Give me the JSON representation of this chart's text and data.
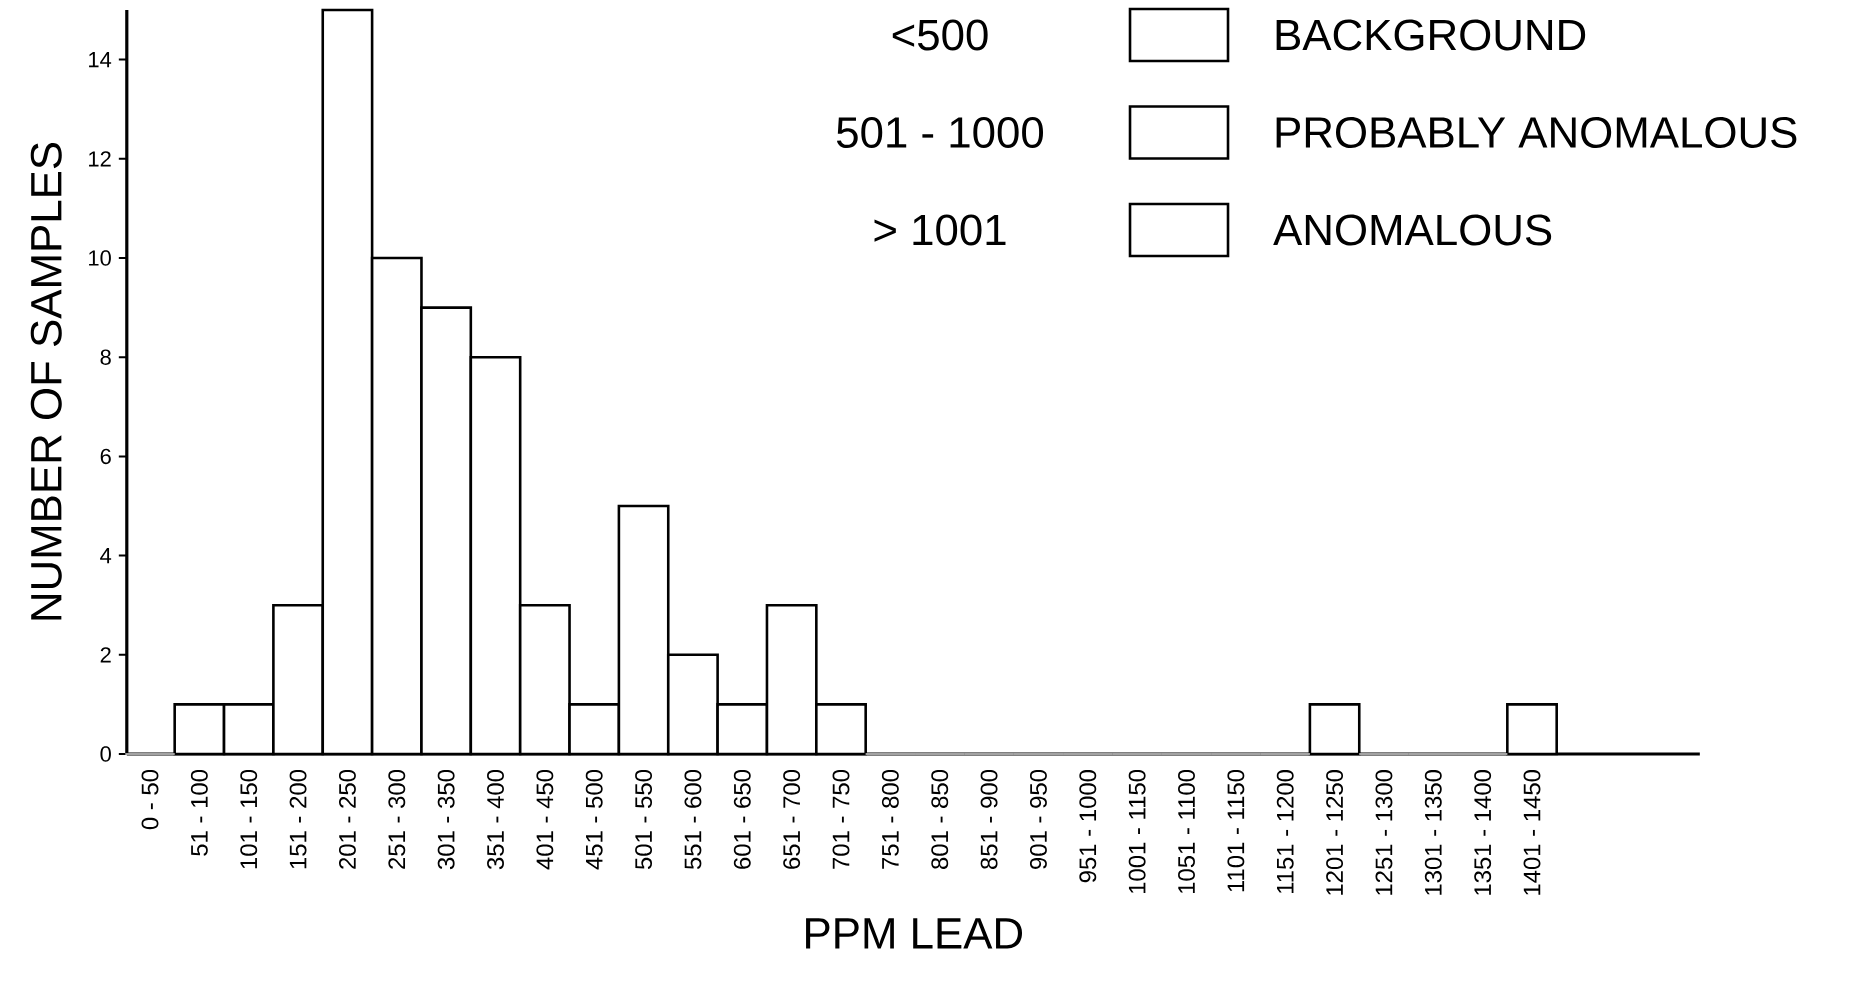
{
  "chart_data": {
    "type": "bar",
    "xlabel": "PPM    LEAD",
    "ylabel": "NUMBER OF SAMPLES",
    "categories": [
      "0 - 50",
      "51 - 100",
      "101 - 150",
      "151 - 200",
      "201 - 250",
      "251 - 300",
      "301 - 350",
      "351 - 400",
      "401 - 450",
      "451 - 500",
      "501 - 550",
      "551 - 600",
      "601 - 650",
      "651 - 700",
      "701 - 750",
      "751 - 800",
      "801 - 850",
      "851 - 900",
      "901 - 950",
      "951 - 1000",
      "1001 - 1150",
      "1051 - 1100",
      "1101 - 1150",
      "1151 - 1200",
      "1201 - 1250",
      "1251 - 1300",
      "1301 - 1350",
      "1351 - 1400",
      "1401 - 1450"
    ],
    "series": [
      {
        "name": "BACKGROUND",
        "color": "#ffffff",
        "values": [
          0,
          1,
          1,
          3,
          15,
          10,
          9,
          8,
          3,
          1,
          null,
          null,
          null,
          null,
          null,
          null,
          null,
          null,
          null,
          null,
          null,
          null,
          null,
          null,
          null,
          null,
          null,
          null,
          null
        ]
      },
      {
        "name": "PROBABLY ANOMALOUS",
        "color": "#ffffff",
        "values": [
          null,
          null,
          null,
          null,
          null,
          null,
          null,
          null,
          null,
          null,
          5,
          2,
          1,
          3,
          1,
          0,
          0,
          0,
          0,
          0,
          null,
          null,
          null,
          null,
          null,
          null,
          null,
          null,
          null
        ]
      },
      {
        "name": "ANOMALOUS",
        "color": "#ffffff",
        "values": [
          null,
          null,
          null,
          null,
          null,
          null,
          null,
          null,
          null,
          null,
          null,
          null,
          null,
          null,
          null,
          null,
          null,
          null,
          null,
          null,
          0,
          0,
          0,
          0,
          1,
          0,
          0,
          0,
          1
        ]
      }
    ],
    "annotations": [
      "<500",
      "501 - 1000",
      "> 1001"
    ],
    "ylim": [
      0,
      15
    ],
    "yticks": [
      0,
      2,
      4,
      6,
      8,
      10,
      12,
      14
    ],
    "legend": "top right"
  }
}
